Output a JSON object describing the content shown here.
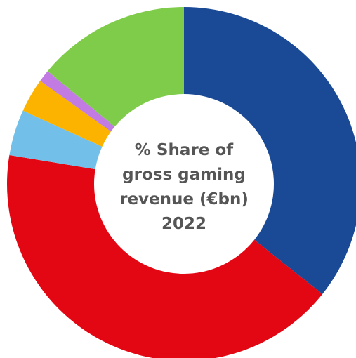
{
  "chart_data": {
    "type": "pie",
    "variant": "donut",
    "title_lines": [
      "% Share of",
      "gross gaming",
      "revenue (€bn)",
      "2022"
    ],
    "slices": [
      {
        "value": 35.7,
        "color": "#1a4a96"
      },
      {
        "value": 41.9,
        "color": "#e30613"
      },
      {
        "value": 4.2,
        "color": "#72bfea"
      },
      {
        "value": 3.1,
        "color": "#fbb300"
      },
      {
        "value": 1.1,
        "color": "#c17be3"
      },
      {
        "value": 14.0,
        "color": "#7fcc4a"
      }
    ],
    "legend": "none"
  }
}
